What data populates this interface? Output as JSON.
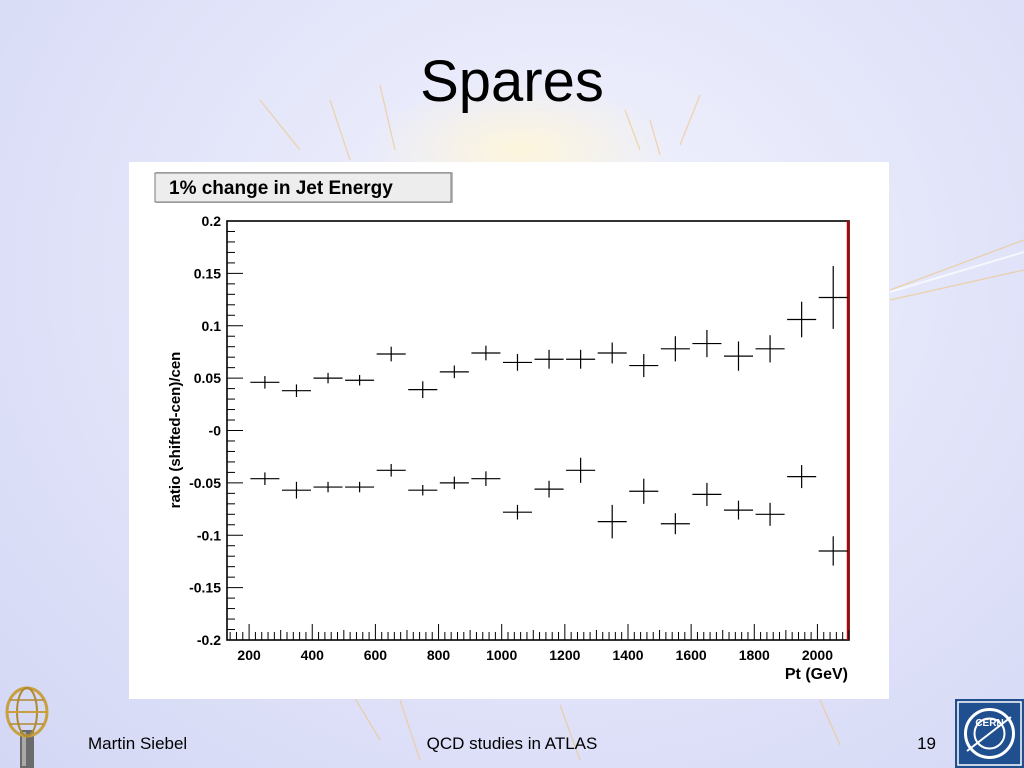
{
  "slide": {
    "title": "Spares",
    "footer_author": "Martin Siebel",
    "footer_center": "QCD studies in ATLAS",
    "page_number": "19",
    "cern_logo_text": "CERN"
  },
  "chart_data": {
    "type": "scatter",
    "title": "1% change in Jet Energy",
    "xlabel": "Pt (GeV)",
    "ylabel": "ratio (shifted-cen)/cen",
    "xlim": [
      130,
      2100
    ],
    "ylim": [
      -0.2,
      0.2
    ],
    "x_ticks": [
      200,
      400,
      600,
      800,
      1000,
      1200,
      1400,
      1600,
      1800,
      2000
    ],
    "x_tick_labels": [
      "200",
      "400",
      "600",
      "800",
      "1000",
      "1200",
      "1400",
      "1600",
      "1800",
      "2000"
    ],
    "y_ticks": [
      0.2,
      0.15,
      0.1,
      0.05,
      0,
      -0.05,
      -0.1,
      -0.15,
      -0.2
    ],
    "y_tick_labels": [
      "0.2",
      "0.15",
      "0.1",
      "0.05",
      "-0",
      "-0.05",
      "-0.1",
      "-0.15",
      "-0.2"
    ],
    "grid": false,
    "legend": "none",
    "colors": {
      "marker": "#000000",
      "frame": "#000000",
      "right_edge": "#c00000"
    },
    "series": [
      {
        "x": [
          250,
          350,
          450,
          550,
          650,
          750,
          850,
          950,
          1050,
          1150,
          1250,
          1350,
          1450,
          1550,
          1650,
          1750,
          1850,
          1950,
          2050
        ],
        "y": [
          0.046,
          0.038,
          0.05,
          0.048,
          0.073,
          0.039,
          0.056,
          0.074,
          0.065,
          0.068,
          0.068,
          0.074,
          0.062,
          0.078,
          0.083,
          0.071,
          0.078,
          0.106,
          0.127
        ],
        "yerr": [
          0.006,
          0.006,
          0.005,
          0.005,
          0.007,
          0.008,
          0.006,
          0.007,
          0.008,
          0.009,
          0.009,
          0.01,
          0.011,
          0.012,
          0.013,
          0.014,
          0.013,
          0.017,
          0.03
        ]
      },
      {
        "x": [
          250,
          350,
          450,
          550,
          650,
          750,
          850,
          950,
          1050,
          1150,
          1250,
          1350,
          1450,
          1550,
          1650,
          1750,
          1850,
          1950,
          2050
        ],
        "y": [
          -0.046,
          -0.057,
          -0.054,
          -0.054,
          -0.038,
          -0.057,
          -0.05,
          -0.046,
          -0.078,
          -0.056,
          -0.038,
          -0.087,
          -0.058,
          -0.089,
          -0.061,
          -0.076,
          -0.08,
          -0.044,
          -0.115
        ],
        "yerr": [
          0.006,
          0.008,
          0.005,
          0.005,
          0.006,
          0.005,
          0.006,
          0.007,
          0.007,
          0.008,
          0.012,
          0.016,
          0.012,
          0.01,
          0.011,
          0.009,
          0.011,
          0.011,
          0.014
        ]
      }
    ]
  }
}
